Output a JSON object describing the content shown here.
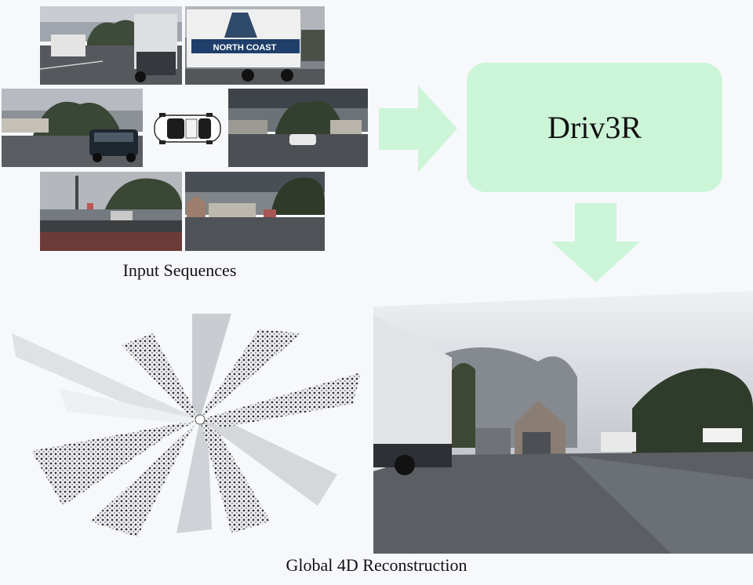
{
  "input": {
    "caption": "Input Sequences",
    "truck_sign": "NORTH COAST"
  },
  "model": {
    "label": "Driv3R"
  },
  "output": {
    "caption": "Global 4D Reconstruction"
  },
  "colors": {
    "arrow": "#ccf5d8",
    "box": "#ccf5d8",
    "background": "#f7f8fb"
  }
}
